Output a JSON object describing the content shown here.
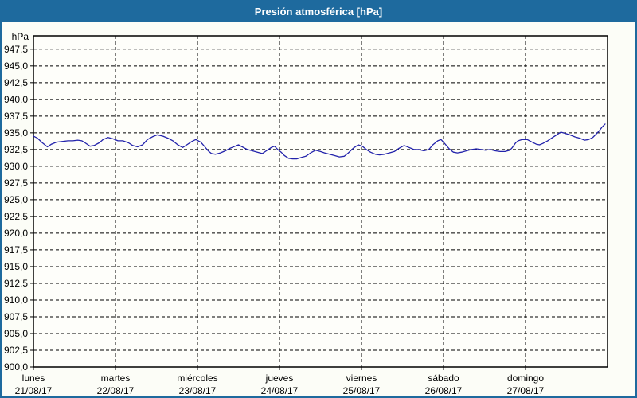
{
  "title_bar": {
    "title": "Presión atmosférica [hPa]"
  },
  "colors": {
    "titlebar_bg": "#1e6a9e",
    "window_border": "#1e6a9e",
    "window_bg": "#fcfdf7",
    "plot_bg": "#fefefa",
    "grid": "#000000",
    "frame": "#000000",
    "text": "#000000",
    "line": "#2323ab"
  },
  "chart_data": {
    "type": "line",
    "title": "Presión atmosférica [hPa]",
    "unit_label": "hPa",
    "ylabel": "hPa",
    "xlabel": "",
    "ylim": [
      900,
      949.5
    ],
    "ytick_step": 2.5,
    "grid": "dashed",
    "legend": "none",
    "x_days_total": 7,
    "yticks": [
      {
        "v": 947.5,
        "label": "947,5"
      },
      {
        "v": 945.0,
        "label": "945,0"
      },
      {
        "v": 942.5,
        "label": "942,5"
      },
      {
        "v": 940.0,
        "label": "940,0"
      },
      {
        "v": 937.5,
        "label": "937,5"
      },
      {
        "v": 935.0,
        "label": "935,0"
      },
      {
        "v": 932.5,
        "label": "932,5"
      },
      {
        "v": 930.0,
        "label": "930,0"
      },
      {
        "v": 927.5,
        "label": "927,5"
      },
      {
        "v": 925.0,
        "label": "925,0"
      },
      {
        "v": 922.5,
        "label": "922,5"
      },
      {
        "v": 920.0,
        "label": "920,0"
      },
      {
        "v": 917.5,
        "label": "917,5"
      },
      {
        "v": 915.0,
        "label": "915,0"
      },
      {
        "v": 912.5,
        "label": "912,5"
      },
      {
        "v": 910.0,
        "label": "910,0"
      },
      {
        "v": 907.5,
        "label": "907,5"
      },
      {
        "v": 905.0,
        "label": "905,0"
      },
      {
        "v": 902.5,
        "label": "902,5"
      },
      {
        "v": 900.0,
        "label": "900,0"
      }
    ],
    "xticks": [
      {
        "day": 0,
        "name": "lunes",
        "date": "21/08/17"
      },
      {
        "day": 1,
        "name": "martes",
        "date": "22/08/17"
      },
      {
        "day": 2,
        "name": "miércoles",
        "date": "23/08/17"
      },
      {
        "day": 3,
        "name": "jueves",
        "date": "24/08/17"
      },
      {
        "day": 4,
        "name": "viernes",
        "date": "25/08/17"
      },
      {
        "day": 5,
        "name": "sábado",
        "date": "26/08/17"
      },
      {
        "day": 6,
        "name": "domingo",
        "date": "27/08/17"
      }
    ],
    "series_name": "Presión atmosférica",
    "points": [
      [
        0.0,
        934.5
      ],
      [
        0.05,
        934.2
      ],
      [
        0.11,
        933.5
      ],
      [
        0.17,
        932.9
      ],
      [
        0.22,
        933.3
      ],
      [
        0.28,
        933.6
      ],
      [
        0.35,
        933.7
      ],
      [
        0.42,
        933.8
      ],
      [
        0.48,
        933.8
      ],
      [
        0.54,
        933.9
      ],
      [
        0.59,
        933.8
      ],
      [
        0.63,
        933.5
      ],
      [
        0.69,
        933.0
      ],
      [
        0.74,
        933.1
      ],
      [
        0.8,
        933.5
      ],
      [
        0.85,
        934.0
      ],
      [
        0.91,
        934.3
      ],
      [
        0.97,
        934.1
      ],
      [
        1.03,
        933.8
      ],
      [
        1.09,
        933.8
      ],
      [
        1.16,
        933.5
      ],
      [
        1.21,
        933.1
      ],
      [
        1.27,
        932.9
      ],
      [
        1.33,
        933.2
      ],
      [
        1.39,
        934.0
      ],
      [
        1.45,
        934.4
      ],
      [
        1.51,
        934.7
      ],
      [
        1.58,
        934.5
      ],
      [
        1.64,
        934.2
      ],
      [
        1.7,
        933.8
      ],
      [
        1.76,
        933.2
      ],
      [
        1.82,
        932.8
      ],
      [
        1.87,
        933.2
      ],
      [
        1.93,
        933.7
      ],
      [
        1.98,
        934.0
      ],
      [
        2.04,
        933.6
      ],
      [
        2.09,
        932.9
      ],
      [
        2.13,
        932.3
      ],
      [
        2.17,
        931.9
      ],
      [
        2.22,
        931.8
      ],
      [
        2.28,
        932.0
      ],
      [
        2.34,
        932.3
      ],
      [
        2.4,
        932.7
      ],
      [
        2.46,
        933.0
      ],
      [
        2.5,
        933.2
      ],
      [
        2.56,
        932.8
      ],
      [
        2.61,
        932.5
      ],
      [
        2.67,
        932.3
      ],
      [
        2.73,
        932.1
      ],
      [
        2.79,
        931.9
      ],
      [
        2.84,
        932.3
      ],
      [
        2.9,
        932.8
      ],
      [
        2.94,
        933.0
      ],
      [
        2.98,
        932.5
      ],
      [
        3.02,
        932.1
      ],
      [
        3.06,
        931.6
      ],
      [
        3.11,
        931.2
      ],
      [
        3.16,
        931.1
      ],
      [
        3.21,
        931.1
      ],
      [
        3.26,
        931.3
      ],
      [
        3.32,
        931.5
      ],
      [
        3.38,
        932.0
      ],
      [
        3.44,
        932.4
      ],
      [
        3.5,
        932.2
      ],
      [
        3.55,
        932.0
      ],
      [
        3.61,
        931.8
      ],
      [
        3.67,
        931.6
      ],
      [
        3.73,
        931.4
      ],
      [
        3.79,
        931.5
      ],
      [
        3.84,
        932.0
      ],
      [
        3.9,
        932.7
      ],
      [
        3.96,
        933.2
      ],
      [
        4.01,
        933.0
      ],
      [
        4.06,
        932.5
      ],
      [
        4.11,
        932.1
      ],
      [
        4.17,
        931.8
      ],
      [
        4.22,
        931.7
      ],
      [
        4.28,
        931.8
      ],
      [
        4.34,
        932.0
      ],
      [
        4.4,
        932.2
      ],
      [
        4.46,
        932.7
      ],
      [
        4.52,
        933.1
      ],
      [
        4.58,
        932.8
      ],
      [
        4.64,
        932.5
      ],
      [
        4.7,
        932.5
      ],
      [
        4.76,
        932.3
      ],
      [
        4.82,
        932.5
      ],
      [
        4.87,
        933.2
      ],
      [
        4.93,
        933.8
      ],
      [
        4.97,
        934.0
      ],
      [
        5.02,
        933.3
      ],
      [
        5.07,
        932.6
      ],
      [
        5.12,
        932.1
      ],
      [
        5.17,
        932.0
      ],
      [
        5.22,
        932.1
      ],
      [
        5.28,
        932.3
      ],
      [
        5.34,
        932.5
      ],
      [
        5.4,
        932.6
      ],
      [
        5.46,
        932.5
      ],
      [
        5.51,
        932.4
      ],
      [
        5.57,
        932.5
      ],
      [
        5.63,
        932.3
      ],
      [
        5.69,
        932.2
      ],
      [
        5.75,
        932.2
      ],
      [
        5.81,
        932.4
      ],
      [
        5.84,
        932.8
      ],
      [
        5.88,
        933.5
      ],
      [
        5.91,
        933.8
      ],
      [
        5.96,
        934.0
      ],
      [
        6.02,
        934.0
      ],
      [
        6.08,
        933.6
      ],
      [
        6.13,
        933.3
      ],
      [
        6.17,
        933.2
      ],
      [
        6.21,
        933.4
      ],
      [
        6.27,
        933.8
      ],
      [
        6.33,
        934.3
      ],
      [
        6.38,
        934.7
      ],
      [
        6.43,
        935.1
      ],
      [
        6.49,
        934.9
      ],
      [
        6.54,
        934.7
      ],
      [
        6.6,
        934.4
      ],
      [
        6.66,
        934.2
      ],
      [
        6.72,
        933.9
      ],
      [
        6.77,
        934.0
      ],
      [
        6.82,
        934.3
      ],
      [
        6.86,
        934.8
      ],
      [
        6.9,
        935.3
      ],
      [
        6.93,
        935.8
      ],
      [
        6.97,
        936.3
      ]
    ]
  }
}
